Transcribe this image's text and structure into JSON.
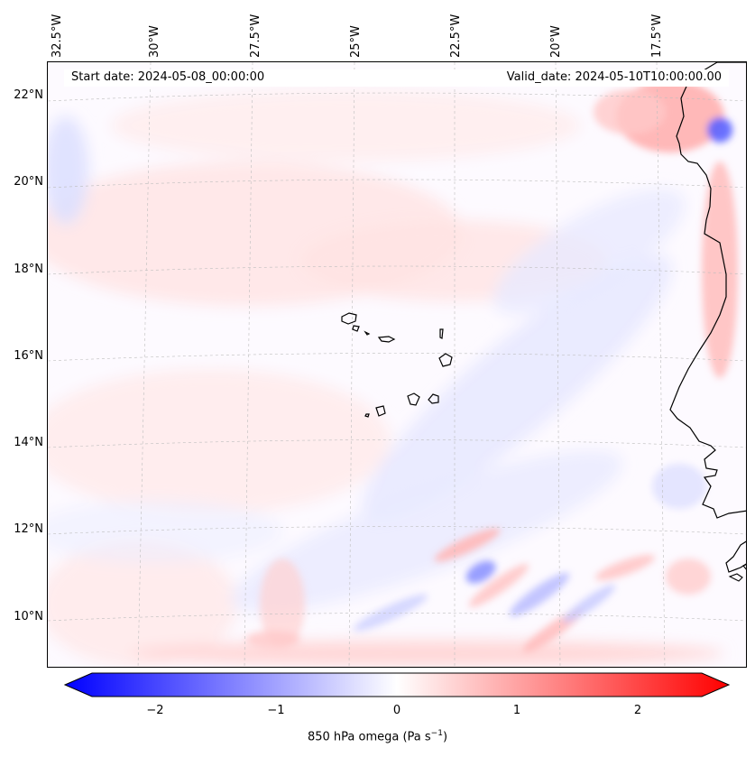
{
  "map": {
    "start_date": "Start date: 2024-05-08_00:00:00",
    "valid_date": "Valid_date: 2024-05-10T10:00:00.00",
    "longitude_labels": [
      "32.5°W",
      "30°W",
      "27.5°W",
      "25°W",
      "22.5°W",
      "20°W",
      "17.5°W"
    ],
    "latitude_labels": [
      "22°N",
      "20°N",
      "18°N",
      "16°N",
      "14°N",
      "12°N",
      "10°N"
    ],
    "variable": "850 hPa omega",
    "units": "Pa s⁻¹",
    "coastline_color": "#000000",
    "gridline_color": "#bdbdbd"
  },
  "colorbar": {
    "label": "850 hPa omega (Pa s",
    "label_exp": "−1",
    "label_close": ")",
    "ticks": [
      "−2",
      "−1",
      "0",
      "1",
      "2"
    ],
    "tick_values": [
      -2,
      -1,
      0,
      1,
      2
    ],
    "range": [
      -2.75,
      2.75
    ],
    "colormap": "bwr",
    "low_color": "#0000ff",
    "mid_color": "#ffffff",
    "high_color": "#ff0000",
    "extend": "both"
  }
}
